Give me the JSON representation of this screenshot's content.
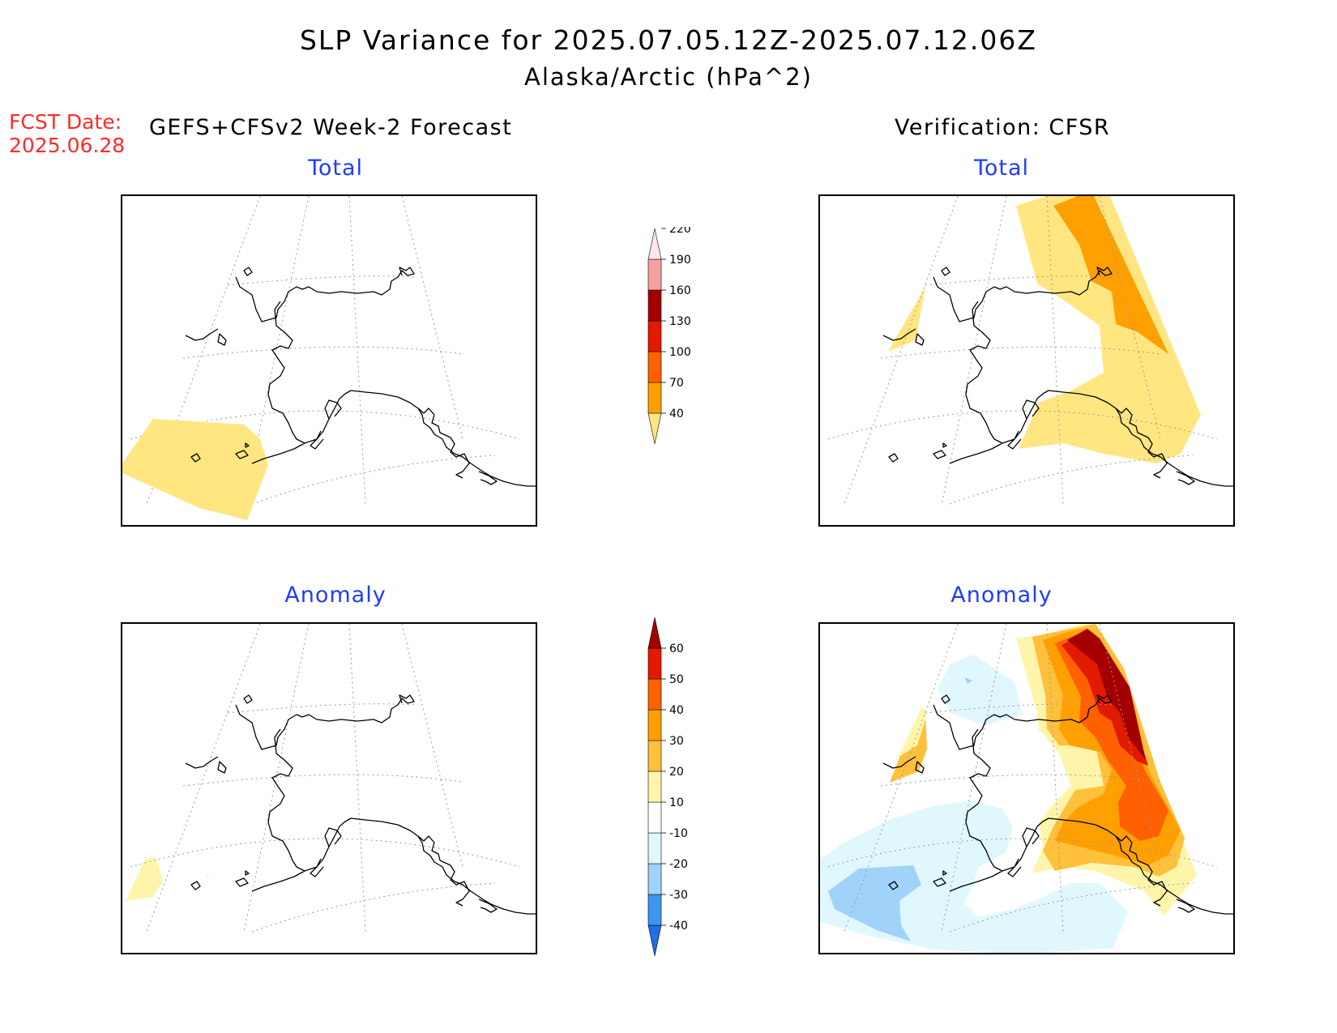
{
  "title": "SLP Variance for 2025.07.05.12Z-2025.07.12.06Z",
  "subtitle": "Alaska/Arctic (hPa^2)",
  "fcst": {
    "label": "FCST Date:",
    "date": "2025.06.28"
  },
  "columns": {
    "forecast": "GEFS+CFSv2 Week-2 Forecast",
    "verification": "Verification: CFSR"
  },
  "panels": {
    "fcst_total": {
      "label": "Total"
    },
    "obs_total": {
      "label": "Total"
    },
    "fcst_anom": {
      "label": "Anomaly"
    },
    "obs_anom": {
      "label": "Anomaly"
    }
  },
  "colorbars": {
    "total": {
      "levels": [
        40,
        70,
        100,
        130,
        160,
        190,
        220
      ],
      "colors": [
        "#ffe680",
        "#ffa000",
        "#ff6000",
        "#e11a00",
        "#a50000",
        "#f4a0a0",
        "#ffe8e8"
      ],
      "ticks": [
        "40",
        "70",
        "100",
        "130",
        "160",
        "190",
        "220"
      ]
    },
    "anomaly": {
      "levels": [
        -40,
        -30,
        -20,
        -10,
        10,
        20,
        30,
        40,
        50,
        60
      ],
      "colors": [
        "#1e6ee6",
        "#3c96f0",
        "#a0d2fa",
        "#e0f7fd",
        "#ffffff",
        "#fff5aa",
        "#ffc03c",
        "#ffa000",
        "#ff6000",
        "#e11a00",
        "#a50000"
      ],
      "ticks": [
        "-40",
        "-30",
        "-20",
        "-10",
        "10",
        "20",
        "30",
        "40",
        "50",
        "60"
      ]
    }
  },
  "colors": {
    "fcst_label": "#ff2a2a",
    "panel_label": "#1f3cff"
  }
}
